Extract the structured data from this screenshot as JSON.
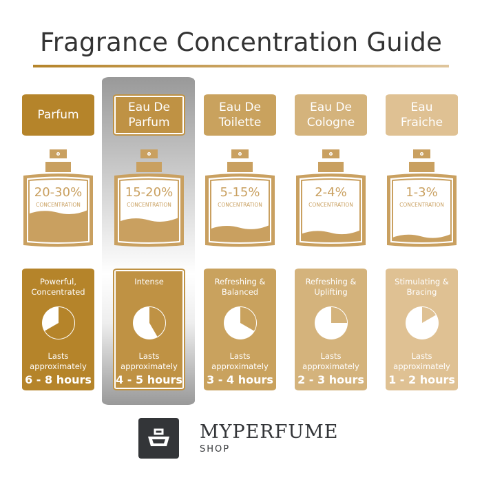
{
  "title": "Fragrance Concentration Guide",
  "bottle_color": "#c9a060",
  "highlighted_index": 1,
  "columns": [
    {
      "name": "Parfum",
      "concentration": "20-30%",
      "conc_label": "CONCENTRATION",
      "fill_level": 0.42,
      "description": "Powerful,\nConcentrated",
      "lasts": "Lasts\napproximately",
      "hours": "6 - 8 hours",
      "pie_hours": 8,
      "color": "#b5842a"
    },
    {
      "name": "Eau De Parfum",
      "concentration": "15-20%",
      "conc_label": "CONCENTRATION",
      "fill_level": 0.3,
      "description": "Intense",
      "lasts": "Lasts\napproximately",
      "hours": "4 - 5 hours",
      "pie_hours": 5,
      "color": "#bf9244"
    },
    {
      "name": "Eau De Toilette",
      "concentration": "5-15%",
      "conc_label": "CONCENTRATION",
      "fill_level": 0.18,
      "description": "Refreshing &\nBalanced",
      "lasts": "Lasts\napproximately",
      "hours": "3 - 4 hours",
      "pie_hours": 4,
      "color": "#c9a25e"
    },
    {
      "name": "Eau De Cologne",
      "concentration": "2-4%",
      "conc_label": "CONCENTRATION",
      "fill_level": 0.1,
      "description": "Refreshing &\nUplifting",
      "lasts": "Lasts\napproximately",
      "hours": "2 - 3 hours",
      "pie_hours": 3,
      "color": "#d4b37c"
    },
    {
      "name": "Eau Fraiche",
      "concentration": "1-3%",
      "conc_label": "CONCENTRATION",
      "fill_level": 0.04,
      "description": "Stimulating &\nBracing",
      "lasts": "Lasts\napproximately",
      "hours": "1 - 2 hours",
      "pie_hours": 2,
      "color": "#dfc193"
    }
  ],
  "logo": {
    "brand": "MYPERFUME",
    "sub": "SHOP",
    "icon": "basket-icon"
  }
}
